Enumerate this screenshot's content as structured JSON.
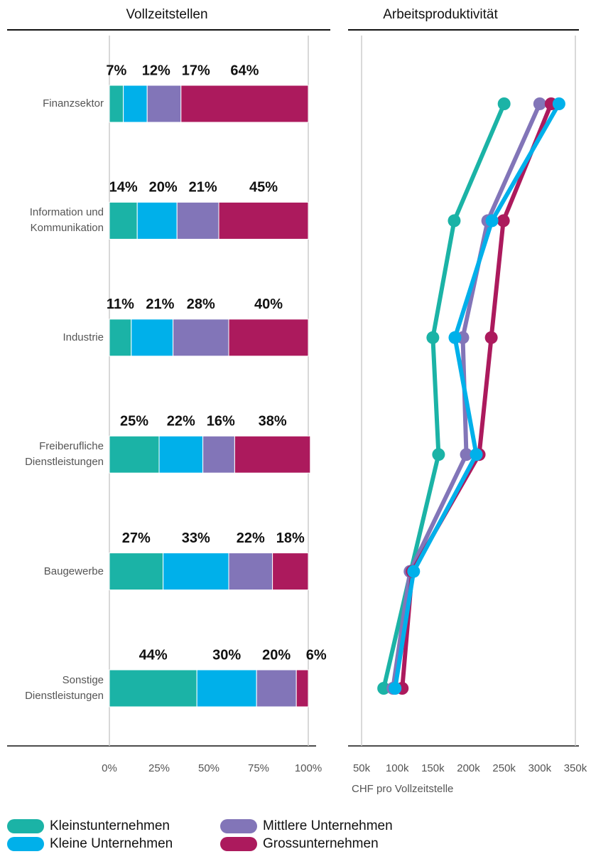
{
  "chart_data": [
    {
      "type": "stacked-bar-horizontal",
      "title": "Vollzeitstellen",
      "categories": [
        "Finanzsektor",
        "Information und Kommunikation",
        "Industrie",
        "Freiberufliche Dienstleistungen",
        "Baugewerbe",
        "Sonstige Dienstleistungen"
      ],
      "series": [
        {
          "name": "Kleinstunternehmen",
          "color": "#1bb3a6",
          "values": [
            7,
            14,
            11,
            25,
            27,
            44
          ],
          "value_labels": [
            "7%",
            "14%",
            "11%",
            "25%",
            "27%",
            "44%"
          ]
        },
        {
          "name": "Kleine Unternehmen",
          "color": "#00b0ea",
          "values": [
            12,
            20,
            21,
            22,
            33,
            30
          ],
          "value_labels": [
            "12%",
            "20%",
            "21%",
            "22%",
            "33%",
            "30%"
          ]
        },
        {
          "name": "Mittlere Unternehmen",
          "color": "#8275b8",
          "values": [
            17,
            21,
            28,
            16,
            22,
            20
          ],
          "value_labels": [
            "17%",
            "21%",
            "28%",
            "16%",
            "22%",
            "20%"
          ]
        },
        {
          "name": "Grossunternehmen",
          "color": "#ac1a5d",
          "values": [
            64,
            45,
            40,
            38,
            18,
            6
          ],
          "value_labels": [
            "64%",
            "45%",
            "40%",
            "38%",
            "18%",
            "6%"
          ]
        }
      ],
      "xlim": [
        0,
        100
      ],
      "xticks": [
        {
          "value": 0,
          "label": "0%"
        },
        {
          "value": 25,
          "label": "25%"
        },
        {
          "value": 50,
          "label": "50%"
        },
        {
          "value": 75,
          "label": "75%"
        },
        {
          "value": 100,
          "label": "100%"
        }
      ],
      "grid": true
    },
    {
      "type": "line-horizontal",
      "title": "Arbeitsproduktivität",
      "xlabel": "CHF pro Vollzeitstelle",
      "series": [
        {
          "color": "#1bb3a6",
          "values": [
            250000,
            180000,
            150000,
            158000,
            119000,
            81000
          ]
        },
        {
          "color": "#8275b8",
          "values": [
            300000,
            227000,
            192000,
            197000,
            118000,
            94000
          ]
        },
        {
          "color": "#ac1a5d",
          "values": [
            316000,
            249000,
            232000,
            215000,
            121000,
            107000
          ]
        },
        {
          "color": "#00b0ea",
          "values": [
            327000,
            233000,
            181000,
            211000,
            123000,
            97000
          ]
        }
      ],
      "xlim": [
        31000,
        355000
      ],
      "xticks": [
        {
          "value": 50000,
          "label": "50k"
        },
        {
          "value": 100000,
          "label": "100k"
        },
        {
          "value": 150000,
          "label": "150k"
        },
        {
          "value": 200000,
          "label": "200k"
        },
        {
          "value": 250000,
          "label": "250k"
        },
        {
          "value": 300000,
          "label": "300k"
        },
        {
          "value": 350000,
          "label": "350k"
        }
      ],
      "grid_edges": true
    }
  ]
}
